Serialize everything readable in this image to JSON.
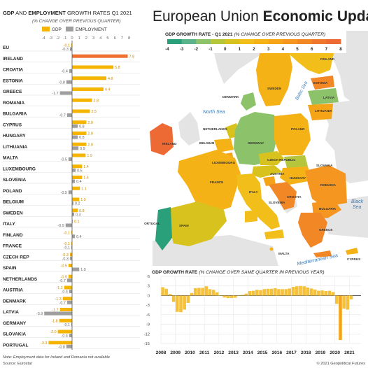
{
  "left_panel": {
    "title_parts": [
      "GDP",
      " AND ",
      "EMPLOYMENT",
      " GROWTH RATES Q1 2021"
    ],
    "subtitle": "(% CHANGE OVER PREVIOUS QUARTER)",
    "legend": [
      "GDP",
      "EMPLOYMENT"
    ],
    "ticks": [
      "-4",
      "-3",
      "-2",
      "-1",
      "0",
      "1",
      "2",
      "3",
      "4",
      "5",
      "6",
      "7",
      "8"
    ]
  },
  "main_title": {
    "light": "European Union ",
    "bold": "Economic Update"
  },
  "map": {
    "scale_title": "GDP GROWTH RATE - Q1 2021",
    "scale_subtitle": "(% CHANGE OVER PREVIOUS QUARTER)",
    "scale_ticks": [
      "-4",
      "-3",
      "-2",
      "-1",
      "0",
      "1",
      "2",
      "3",
      "4",
      "5",
      "6",
      "7",
      "8"
    ],
    "country_labels": [
      "FINLAND",
      "SWEDEN",
      "ESTONIA",
      "LATVIA",
      "LITHUANIA",
      "DENMARK",
      "IRELAND",
      "NETHERLANDS",
      "BELGIUM",
      "LUXEMBOURG",
      "GERMANY",
      "POLAND",
      "CZECH REPUBLIC",
      "SLOVAKIA",
      "AUSTRIA",
      "HUNGARY",
      "ROMANIA",
      "FRANCE",
      "SLOVENIA",
      "CROATIA",
      "BULGARIA",
      "ITALY",
      "SPAIN",
      "PORTUGAL",
      "GREECE",
      "MALTA",
      "CYPRUS"
    ],
    "sea_labels": [
      "North Sea",
      "Baltic Sea",
      "Black Sea",
      "Mediterranean Sea"
    ]
  },
  "footer": {
    "note": "Note: Employment data for Ireland and Romania not available",
    "source": "Source: Eurostat",
    "copyright": "© 2021 Geopolitical Futures"
  },
  "colors": {
    "gdp": "#f4b400",
    "gdp_highlight": "#f07030",
    "employment": "#9e9e9e",
    "sea": "#ffffff",
    "land_outside": "#e4e4e4",
    "sea_label": "#3a7ab8",
    "map_scale": [
      "#2aa07a",
      "#5bb38c",
      "#8cc36a",
      "#b5c63c",
      "#d8c21e",
      "#f2be1a",
      "#f5b216",
      "#f5a418",
      "#f4961f",
      "#f28726",
      "#f0782e",
      "#ee6a35"
    ]
  },
  "chart_data": [
    {
      "type": "bar",
      "title": "GDP AND EMPLOYMENT GROWTH RATES Q1 2021",
      "subtitle": "(% CHANGE OVER PREVIOUS QUARTER)",
      "xlim": [
        -4,
        8
      ],
      "orientation": "horizontal",
      "categories": [
        "EU",
        "IRELAND",
        "CROATIA",
        "ESTONIA",
        "GREECE",
        "ROMANIA",
        "BULGARIA",
        "CYPRUS",
        "HUNGARY",
        "LITHUANIA",
        "MALTA",
        "LUXEMBOURG",
        "SLOVENIA",
        "POLAND",
        "BELGIUM",
        "SWEDEN",
        "ITALY",
        "FINLAND",
        "FRANCE",
        "CZECH REP",
        "SPAIN",
        "NETHERLANDS",
        "AUSTRIA",
        "DENMARK",
        "LATVIA",
        "GERMANY",
        "SLOVAKIA",
        "PORTUGAL"
      ],
      "series": [
        {
          "name": "GDP",
          "values": [
            -0.1,
            7.8,
            5.8,
            4.8,
            4.4,
            2.8,
            2.5,
            2.0,
            2.0,
            2.0,
            1.9,
            1.4,
            1.4,
            1.1,
            1.0,
            0.8,
            0.1,
            -0.1,
            -0.1,
            -0.3,
            -0.5,
            -0.5,
            -1.1,
            -1.3,
            -1.7,
            -1.8,
            -2.0,
            -3.3
          ],
          "labels": [
            "-0.1",
            "7.8",
            "5.8",
            "4.8",
            "4.4",
            "2.8",
            "2.5",
            "2.0",
            "2.0",
            "2.0",
            "1.9",
            "1.4",
            "1.4",
            "1.1",
            "1.0",
            "0.8",
            "0.1",
            "-0.1",
            "-0.1",
            "-0.3",
            "-0.5",
            "-0.5",
            "-1.1",
            "-1.3",
            "-1.7",
            "-1.8",
            "-2.0",
            "-3.3"
          ]
        },
        {
          "name": "EMPLOYMENT",
          "values": [
            -0.3,
            null,
            -0.4,
            -0.8,
            -1.7,
            null,
            -0.7,
            0.8,
            0.8,
            0.9,
            -0.5,
            0.5,
            0.4,
            -0.5,
            0.2,
            0.3,
            -0.9,
            0.4,
            -0.1,
            -0.3,
            1.0,
            -0.7,
            -0.4,
            -0.7,
            -3.9,
            -0.1,
            -0.4,
            -0.8
          ],
          "labels": [
            "-0.3",
            "",
            "-0.4",
            "-0.8",
            "-1.7",
            "",
            "-0.7",
            "0.8",
            "0.8",
            "0.9",
            "-0.5",
            "0.5",
            "0.4",
            "-0.5",
            "0.2",
            "0.3",
            "-0.9",
            "0.4",
            "-0.1",
            "-0.3",
            "1.0",
            "-0.7",
            "-0.4",
            "-0.7",
            "-3.9",
            "-0.1",
            "-0.4",
            "-0.8"
          ]
        }
      ]
    },
    {
      "type": "bar",
      "title": "GDP GROWTH RATE",
      "subtitle": "(% CHANGE OVER SAME QUARTER IN PREVIOUS YEAR)",
      "ylim": [
        -15,
        6
      ],
      "yticks": [
        "6",
        "3",
        "0",
        "-3",
        "-6",
        "-9",
        "-12",
        "-15"
      ],
      "xticks": [
        "2008",
        "2009",
        "2010",
        "2011",
        "2012",
        "2013",
        "2014",
        "2015",
        "2016",
        "2017",
        "2018",
        "2019",
        "2020",
        "2021"
      ],
      "values": [
        2.6,
        2.1,
        0.5,
        -2.0,
        -5.1,
        -5.2,
        -4.4,
        -2.3,
        0.8,
        2.3,
        2.4,
        2.4,
        2.9,
        2.0,
        1.8,
        1.0,
        -0.1,
        -0.6,
        -0.8,
        -0.8,
        -0.7,
        -0.1,
        0.2,
        0.6,
        1.4,
        1.5,
        1.8,
        1.7,
        2.0,
        2.1,
        2.1,
        2.3,
        2.0,
        2.0,
        2.0,
        2.2,
        2.7,
        2.9,
        3.0,
        2.9,
        2.5,
        2.2,
        1.9,
        1.5,
        1.6,
        1.4,
        1.5,
        1.1,
        -2.6,
        -13.9,
        -4.1,
        -4.4,
        -1.2
      ]
    }
  ]
}
